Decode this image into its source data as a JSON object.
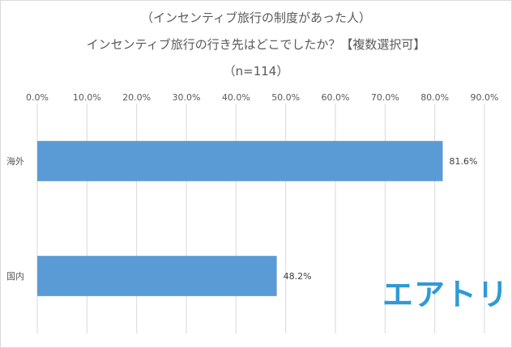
{
  "chart_data": {
    "type": "bar",
    "orientation": "horizontal",
    "title": [
      "（インセンティブ旅行の制度があった人）",
      "インセンティブ旅行の行き先はどこでしたか？【複数選択可】",
      "（n=114）"
    ],
    "categories": [
      "海外",
      "国内"
    ],
    "values": [
      81.6,
      48.2
    ],
    "data_labels": [
      "81.6%",
      "48.2%"
    ],
    "xlim": [
      0,
      90
    ],
    "xticks": [
      0,
      10,
      20,
      30,
      40,
      50,
      60,
      70,
      80,
      90
    ],
    "xtick_labels": [
      "0.0%",
      "10.0%",
      "20.0%",
      "30.0%",
      "40.0%",
      "50.0%",
      "60.0%",
      "70.0%",
      "80.0%",
      "90.0%"
    ],
    "xaxis_position": "top",
    "grid": true,
    "legend": "none",
    "bar_color": "#5b9bd5",
    "grid_color": "#d9d9d9"
  },
  "logo_text": "エアトリ",
  "logo_color": "#2f9ad6"
}
